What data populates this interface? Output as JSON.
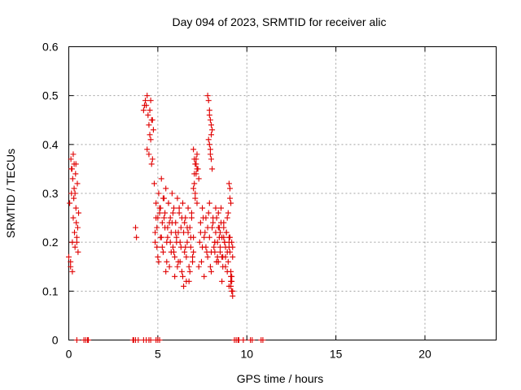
{
  "chart_data": {
    "type": "scatter",
    "title": "Day 094 of 2023, SRMTID for receiver alic",
    "xlabel": "GPS time / hours",
    "ylabel": "SRMTID / TECUs",
    "xlim": [
      0,
      24
    ],
    "ylim": [
      0,
      0.6
    ],
    "xticks": [
      0,
      5,
      10,
      15,
      20
    ],
    "yticks": [
      0,
      0.1,
      0.2,
      0.3,
      0.4,
      0.5,
      0.6
    ],
    "xtick_labels": [
      "0",
      "5",
      "10",
      "15",
      "20"
    ],
    "ytick_labels": [
      "0",
      "0.1",
      "0.2",
      "0.3",
      "0.4",
      "0.5",
      "0.6"
    ],
    "grid": true,
    "marker": "+",
    "color": "#e00000",
    "series": [
      {
        "name": "SRMTID",
        "x": [
          0.0,
          0.05,
          0.1,
          0.12,
          0.15,
          0.18,
          0.2,
          0.22,
          0.25,
          0.28,
          0.3,
          0.32,
          0.35,
          0.38,
          0.4,
          0.42,
          0.45,
          0.48,
          0.5,
          0.52,
          0.55,
          0.1,
          0.2,
          0.3,
          0.4,
          0.15,
          0.25,
          0.35,
          0.45,
          3.75,
          3.8,
          4.2,
          4.25,
          4.3,
          4.35,
          4.4,
          4.45,
          4.5,
          4.55,
          4.6,
          4.65,
          4.7,
          4.75,
          4.5,
          4.6,
          4.4,
          4.7,
          4.55,
          4.65,
          4.8,
          4.85,
          4.9,
          4.95,
          5.0,
          5.05,
          5.1,
          5.15,
          5.2,
          5.25,
          5.3,
          5.35,
          5.4,
          5.45,
          5.5,
          5.55,
          5.6,
          5.65,
          5.7,
          5.75,
          5.8,
          5.85,
          5.9,
          5.95,
          6.0,
          6.05,
          6.1,
          6.15,
          6.2,
          6.25,
          6.3,
          6.35,
          6.4,
          6.45,
          6.5,
          6.55,
          6.6,
          6.65,
          6.7,
          6.75,
          6.8,
          6.85,
          6.9,
          6.95,
          7.0,
          4.9,
          5.0,
          5.1,
          5.2,
          5.3,
          5.4,
          5.5,
          5.6,
          5.7,
          5.8,
          5.9,
          6.0,
          6.1,
          6.2,
          6.3,
          6.4,
          6.5,
          6.6,
          6.7,
          6.8,
          6.9,
          7.0,
          4.85,
          4.95,
          5.05,
          5.15,
          5.25,
          5.35,
          5.45,
          5.55,
          5.65,
          5.75,
          5.85,
          5.95,
          6.05,
          6.15,
          6.25,
          6.35,
          6.45,
          6.55,
          6.65,
          6.75,
          6.85,
          6.95,
          7.0,
          7.05,
          7.1,
          7.15,
          7.2,
          7.25,
          7.3,
          7.0,
          7.05,
          7.1,
          7.15,
          7.2,
          7.1,
          7.15,
          7.05,
          7.2,
          7.3,
          7.4,
          7.5,
          7.6,
          7.7,
          7.8,
          7.9,
          8.0,
          8.1,
          8.2,
          8.3,
          8.4,
          8.5,
          8.6,
          8.7,
          8.8,
          8.9,
          9.0,
          9.1,
          9.2,
          7.35,
          7.45,
          7.55,
          7.65,
          7.75,
          7.85,
          7.95,
          8.05,
          8.15,
          8.25,
          8.35,
          8.45,
          8.55,
          8.65,
          8.75,
          8.85,
          8.95,
          9.05,
          9.15,
          7.4,
          7.5,
          7.6,
          7.7,
          7.8,
          7.9,
          8.0,
          8.1,
          8.2,
          8.3,
          8.4,
          8.5,
          8.6,
          8.7,
          8.8,
          8.9,
          9.0,
          9.1,
          7.8,
          7.85,
          7.9,
          7.95,
          8.0,
          8.05,
          7.9,
          7.95,
          8.0,
          7.85,
          8.05,
          7.9,
          8.0,
          7.95,
          8.2,
          8.25,
          8.3,
          8.35,
          8.4,
          8.45,
          8.5,
          8.55,
          8.6,
          8.65,
          8.7,
          8.75,
          8.8,
          8.85,
          8.9,
          8.95,
          9.0,
          9.05,
          9.1,
          9.15,
          9.2,
          9.0,
          9.05,
          9.1,
          9.15,
          9.2,
          9.0,
          9.1,
          9.2,
          9.05,
          9.15,
          0.45,
          0.85,
          0.95,
          1.05,
          1.1,
          3.6,
          3.65,
          3.75,
          3.9,
          4.2,
          4.35,
          4.5,
          4.6,
          4.9,
          5.0,
          5.1,
          9.3,
          9.4,
          9.5,
          9.55,
          9.8,
          10.2,
          10.3,
          10.8,
          10.9
        ],
        "y": [
          0.17,
          0.28,
          0.15,
          0.37,
          0.3,
          0.35,
          0.2,
          0.33,
          0.25,
          0.29,
          0.36,
          0.22,
          0.19,
          0.34,
          0.27,
          0.24,
          0.21,
          0.32,
          0.23,
          0.18,
          0.26,
          0.16,
          0.14,
          0.31,
          0.36,
          0.35,
          0.38,
          0.3,
          0.2,
          0.23,
          0.21,
          0.47,
          0.48,
          0.49,
          0.48,
          0.5,
          0.46,
          0.44,
          0.42,
          0.49,
          0.45,
          0.37,
          0.43,
          0.38,
          0.41,
          0.39,
          0.45,
          0.47,
          0.36,
          0.32,
          0.22,
          0.28,
          0.19,
          0.25,
          0.3,
          0.27,
          0.21,
          0.33,
          0.24,
          0.18,
          0.29,
          0.26,
          0.31,
          0.2,
          0.23,
          0.28,
          0.15,
          0.25,
          0.22,
          0.3,
          0.19,
          0.27,
          0.17,
          0.24,
          0.21,
          0.29,
          0.16,
          0.26,
          0.2,
          0.23,
          0.14,
          0.28,
          0.22,
          0.18,
          0.25,
          0.12,
          0.2,
          0.27,
          0.15,
          0.23,
          0.19,
          0.26,
          0.17,
          0.21,
          0.25,
          0.17,
          0.26,
          0.21,
          0.29,
          0.23,
          0.16,
          0.28,
          0.2,
          0.24,
          0.18,
          0.22,
          0.15,
          0.27,
          0.19,
          0.13,
          0.24,
          0.17,
          0.22,
          0.14,
          0.25,
          0.18,
          0.2,
          0.23,
          0.16,
          0.27,
          0.19,
          0.25,
          0.14,
          0.21,
          0.24,
          0.18,
          0.26,
          0.13,
          0.2,
          0.22,
          0.16,
          0.25,
          0.11,
          0.19,
          0.23,
          0.12,
          0.21,
          0.16,
          0.39,
          0.37,
          0.36,
          0.34,
          0.38,
          0.35,
          0.33,
          0.31,
          0.32,
          0.29,
          0.37,
          0.35,
          0.3,
          0.36,
          0.34,
          0.28,
          0.15,
          0.22,
          0.19,
          0.13,
          0.25,
          0.17,
          0.21,
          0.14,
          0.24,
          0.2,
          0.16,
          0.23,
          0.18,
          0.12,
          0.21,
          0.17,
          0.14,
          0.2,
          0.11,
          0.19,
          0.2,
          0.16,
          0.25,
          0.22,
          0.18,
          0.26,
          0.15,
          0.23,
          0.19,
          0.27,
          0.17,
          0.21,
          0.24,
          0.15,
          0.2,
          0.22,
          0.16,
          0.18,
          0.13,
          0.24,
          0.27,
          0.21,
          0.19,
          0.23,
          0.28,
          0.18,
          0.25,
          0.2,
          0.16,
          0.26,
          0.22,
          0.17,
          0.23,
          0.19,
          0.25,
          0.21,
          0.12,
          0.5,
          0.49,
          0.47,
          0.45,
          0.44,
          0.43,
          0.4,
          0.38,
          0.37,
          0.41,
          0.35,
          0.46,
          0.42,
          0.39,
          0.18,
          0.22,
          0.25,
          0.2,
          0.16,
          0.23,
          0.19,
          0.27,
          0.21,
          0.17,
          0.24,
          0.2,
          0.15,
          0.22,
          0.18,
          0.26,
          0.19,
          0.21,
          0.14,
          0.2,
          0.17,
          0.32,
          0.29,
          0.28,
          0.12,
          0.1,
          0.11,
          0.13,
          0.09,
          0.31,
          0.1,
          0,
          0,
          0,
          0,
          0,
          0,
          0,
          0,
          0,
          0,
          0,
          0,
          0,
          0,
          0,
          0,
          0,
          0,
          0,
          0,
          0,
          0,
          0,
          0,
          0
        ]
      }
    ]
  }
}
